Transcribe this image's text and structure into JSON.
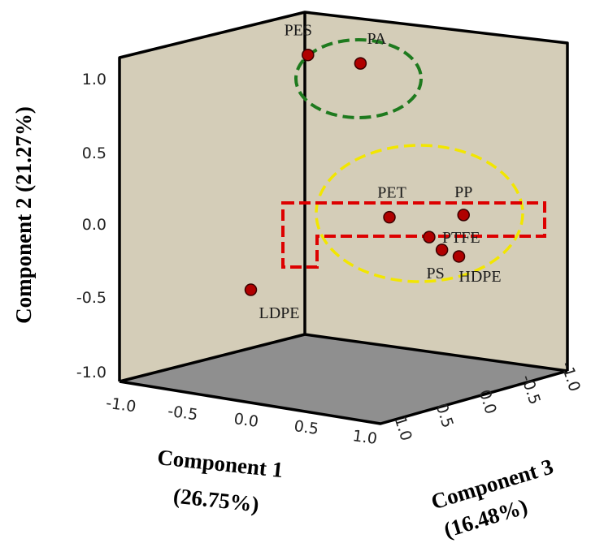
{
  "chart_data": {
    "type": "scatter",
    "projection": "3d",
    "axes": {
      "x": {
        "label": "Component 1",
        "variance": "(26.75%)",
        "ticks": [
          "-1.0",
          "-0.5",
          "0.0",
          "0.5",
          "1.0"
        ]
      },
      "y": {
        "label": "Component 2",
        "variance": "(21.27%)",
        "ticks": [
          "1.0",
          "0.5",
          "0.0",
          "-0.5",
          "-1.0"
        ]
      },
      "z": {
        "label": "Component 3",
        "variance": "(16.48%)",
        "ticks": [
          "1.0",
          "0.5",
          "0.0",
          "-0.5",
          "-1.0"
        ]
      }
    },
    "points": [
      {
        "name": "PES",
        "c1": -0.2,
        "c2": 1.0,
        "c3": -0.1
      },
      {
        "name": "PA",
        "c1": 0.2,
        "c2": 1.0,
        "c3": -0.1
      },
      {
        "name": "PP",
        "c1": 0.95,
        "c2": 0.15,
        "c3": -0.05
      },
      {
        "name": "PET",
        "c1": 0.35,
        "c2": 0.05,
        "c3": 0.0
      },
      {
        "name": "PTFE",
        "c1": 0.9,
        "c2": 0.05,
        "c3": -0.35
      },
      {
        "name": "PS",
        "c1": 0.75,
        "c2": -0.1,
        "c3": 0.0
      },
      {
        "name": "HDPE",
        "c1": 0.95,
        "c2": -0.1,
        "c3": -0.1
      },
      {
        "name": "LDPE",
        "c1": 0.0,
        "c2": -0.3,
        "c3": -1.0
      }
    ],
    "point_color": "#b00000",
    "groupings": [
      {
        "shape": "ellipse",
        "style": "dashed",
        "color": "#1e7a1e",
        "members": [
          "PES",
          "PA"
        ]
      },
      {
        "shape": "ellipse",
        "style": "dashed",
        "color": "#f2e600",
        "members": [
          "PP",
          "PET",
          "PTFE",
          "PS",
          "HDPE"
        ]
      },
      {
        "shape": "polygon",
        "style": "dashed",
        "color": "#dd0000",
        "members": [
          "LDPE",
          "PET",
          "PS",
          "HDPE",
          "PTFE"
        ]
      }
    ],
    "wall_color": "#d4cdb8",
    "floor_color": "#8f8f8f"
  }
}
